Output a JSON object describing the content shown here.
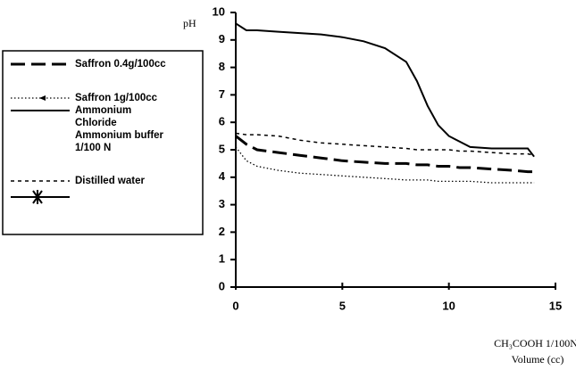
{
  "chart_data": {
    "type": "line",
    "y_label": "pH",
    "x_label": "CH₃COOH 1/100N",
    "x_label_2": "Volume (cc)",
    "xlim": [
      0,
      15
    ],
    "xticks": [
      0,
      5,
      10,
      15
    ],
    "ylim": [
      0,
      10
    ],
    "yticks": [
      0,
      1,
      2,
      3,
      4,
      5,
      6,
      7,
      8,
      9,
      10
    ],
    "grid": false,
    "legend": "left",
    "x": [
      0,
      0.5,
      1,
      2,
      3,
      4,
      5,
      6,
      7,
      8,
      8.5,
      9,
      9.5,
      10,
      10.5,
      11,
      12,
      13,
      13.7,
      14
    ],
    "series": [
      {
        "name": "Saffron 0.4g/100cc",
        "color": "#000000",
        "line_style": "dashed",
        "values": [
          5.5,
          5.2,
          5.0,
          4.9,
          4.8,
          4.7,
          4.6,
          4.55,
          4.5,
          4.5,
          4.45,
          4.45,
          4.4,
          4.4,
          4.35,
          4.35,
          4.3,
          4.25,
          4.2,
          4.2
        ]
      },
      {
        "name": "Saffron 1g/100cc",
        "color": "#000000",
        "line_style": "dotted",
        "marker": "arrow",
        "values": [
          5.1,
          4.6,
          4.4,
          4.25,
          4.15,
          4.1,
          4.05,
          4.0,
          3.95,
          3.9,
          3.9,
          3.9,
          3.85,
          3.85,
          3.85,
          3.85,
          3.8,
          3.8,
          3.8,
          3.8
        ]
      },
      {
        "name": "Ammonium Chloride Ammonium buffer 1/100 N",
        "color": "#000000",
        "line_style": "solid",
        "values": [
          9.6,
          9.35,
          9.35,
          9.3,
          9.25,
          9.2,
          9.1,
          8.95,
          8.7,
          8.2,
          7.5,
          6.6,
          5.9,
          5.5,
          5.3,
          5.1,
          5.05,
          5.05,
          5.05,
          4.75
        ]
      },
      {
        "name": "Distilled water",
        "color": "#000000",
        "line_style": "short-dashed",
        "values": [
          5.6,
          5.55,
          5.55,
          5.5,
          5.35,
          5.25,
          5.2,
          5.15,
          5.1,
          5.05,
          5.0,
          5.0,
          5.0,
          5.0,
          4.95,
          4.95,
          4.9,
          4.85,
          4.85,
          4.8
        ]
      }
    ]
  }
}
